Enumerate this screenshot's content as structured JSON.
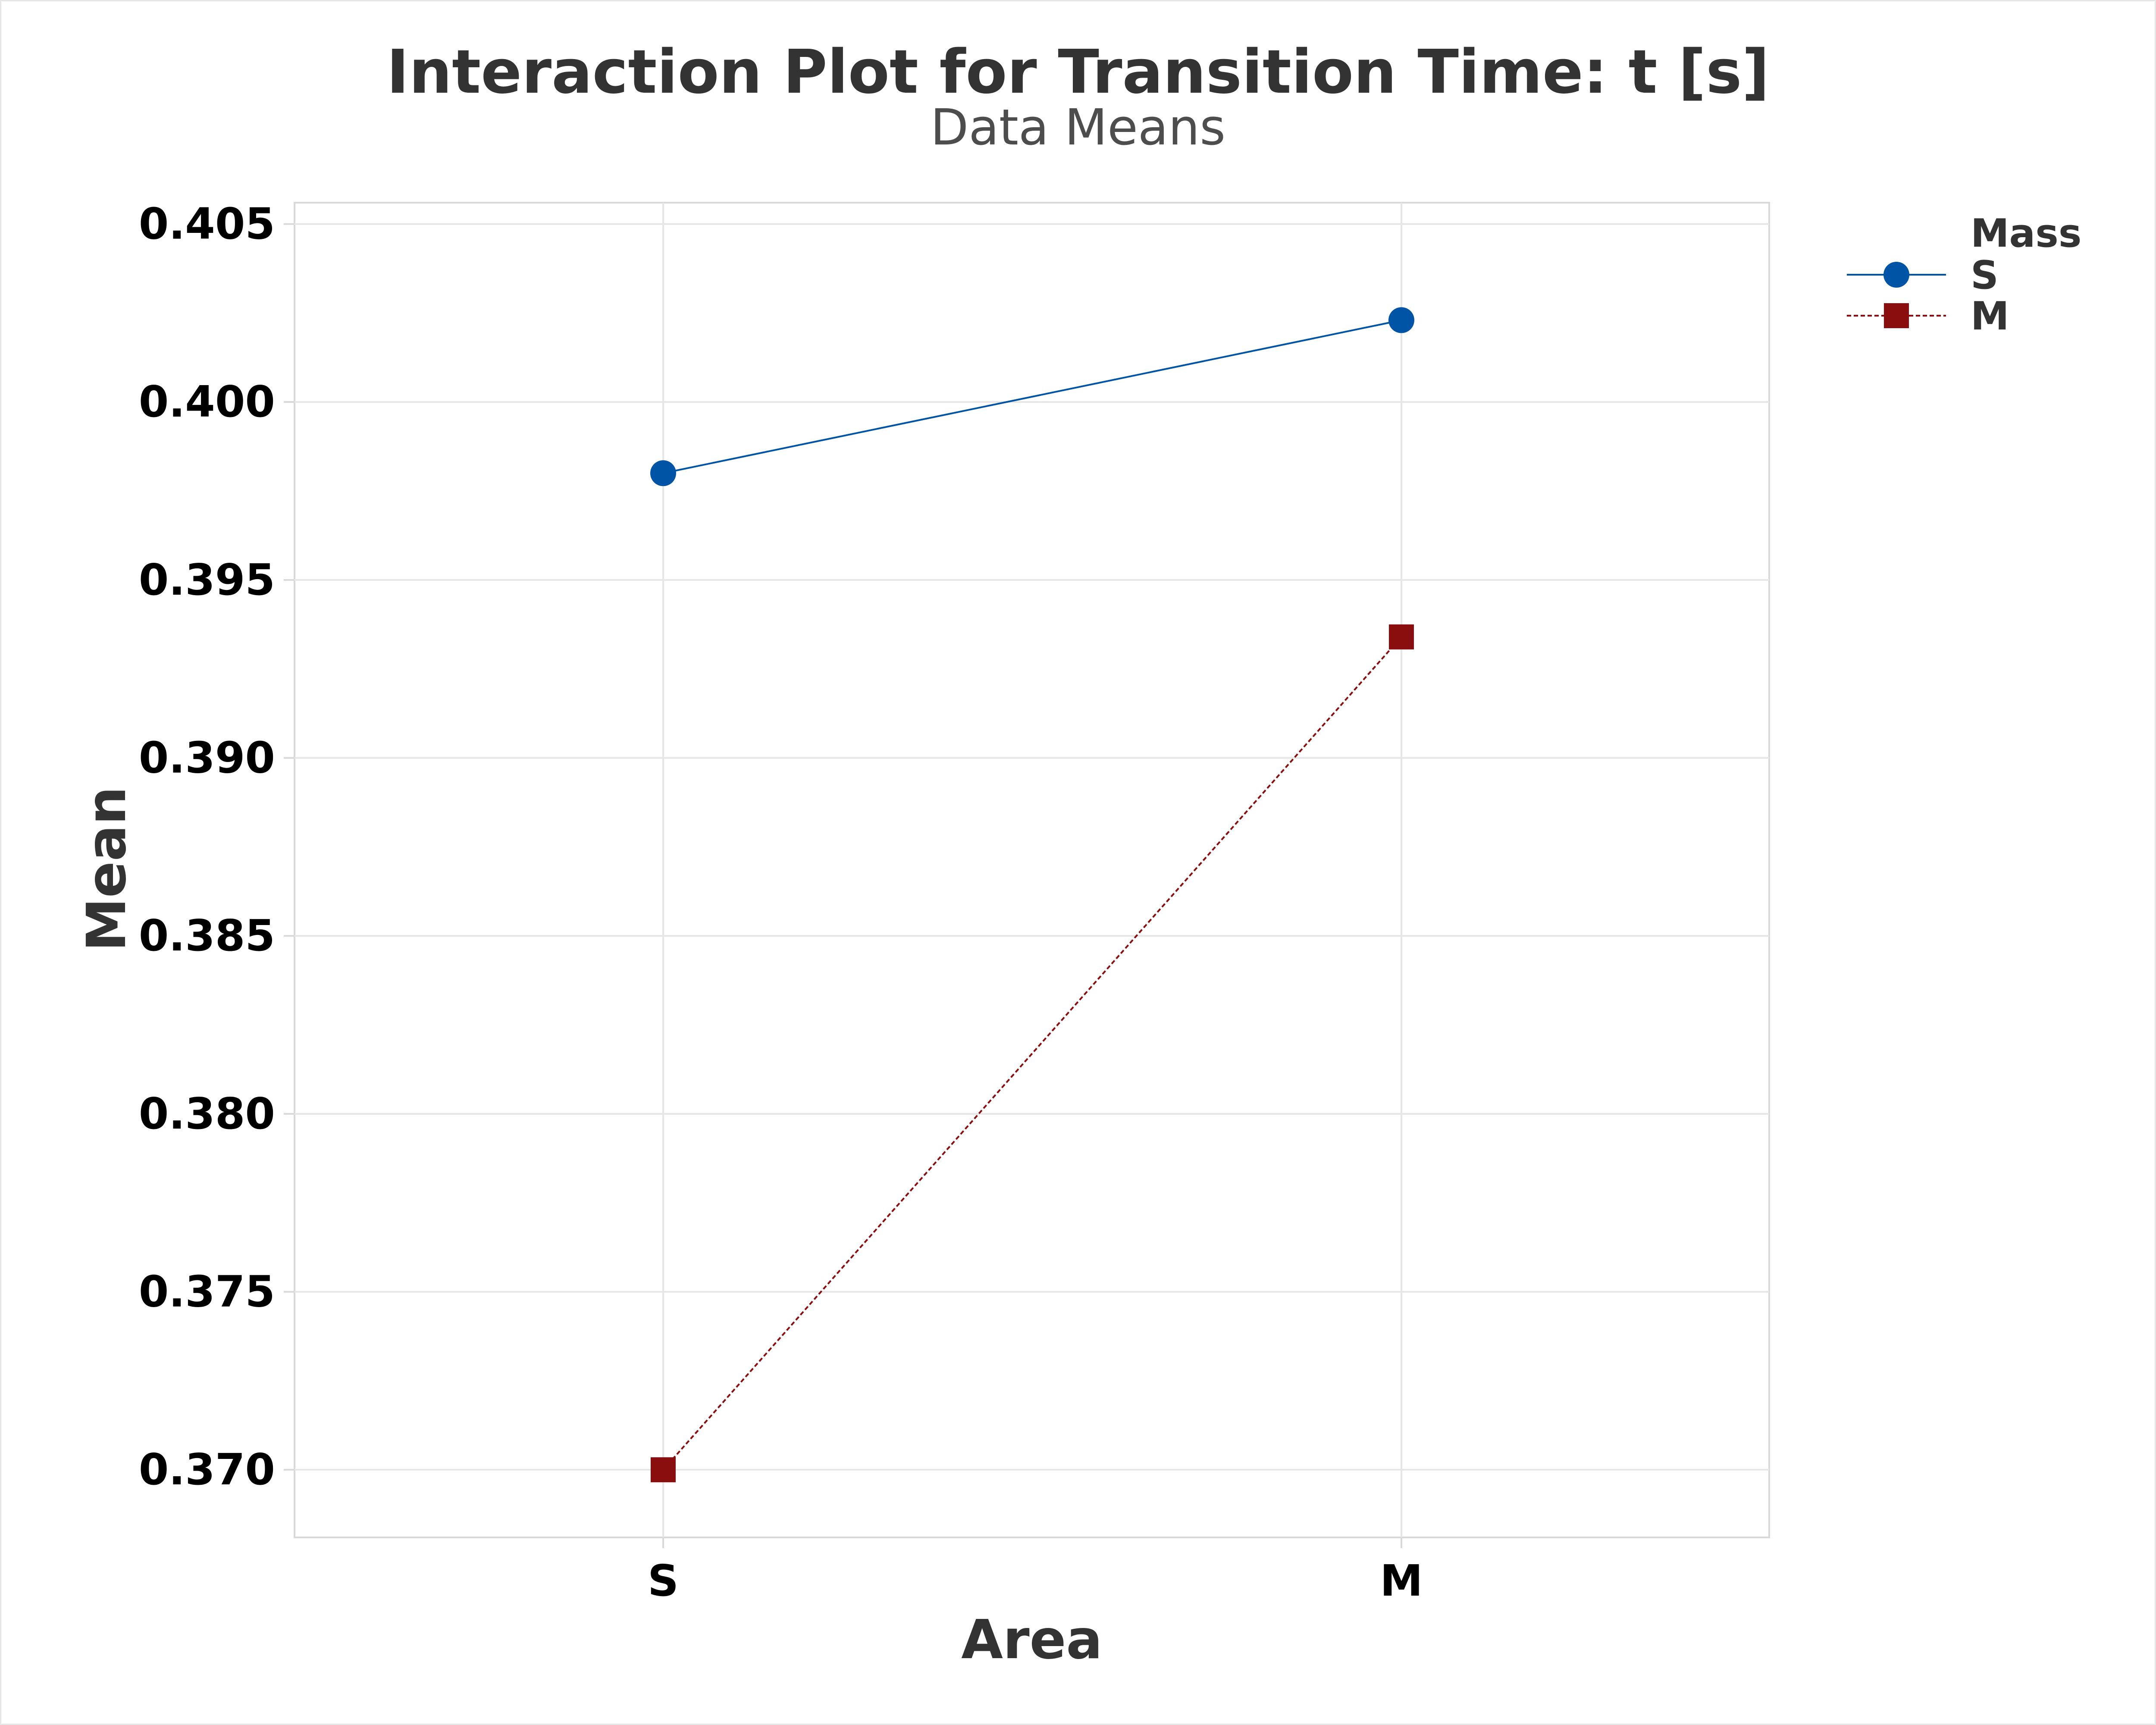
{
  "chart_data": {
    "type": "line",
    "title": "Interaction Plot for Transition Time: t [s]",
    "subtitle": "Data Means",
    "xlabel": "Area",
    "ylabel": "Mean",
    "categories": [
      "S",
      "M"
    ],
    "ylim": [
      0.3681,
      0.4056
    ],
    "yticks": [
      "0.370",
      "0.375",
      "0.380",
      "0.385",
      "0.390",
      "0.395",
      "0.400",
      "0.405"
    ],
    "grid": true,
    "legend": {
      "title": "Mass",
      "placement": "top-right"
    },
    "series": [
      {
        "name": "S",
        "values": [
          0.398,
          0.4023
        ],
        "color": "#0054a6",
        "marker": "circle",
        "line": "solid"
      },
      {
        "name": "M",
        "values": [
          0.37,
          0.3934
        ],
        "color": "#8b0e0e",
        "marker": "square",
        "line": "dotted"
      }
    ]
  }
}
